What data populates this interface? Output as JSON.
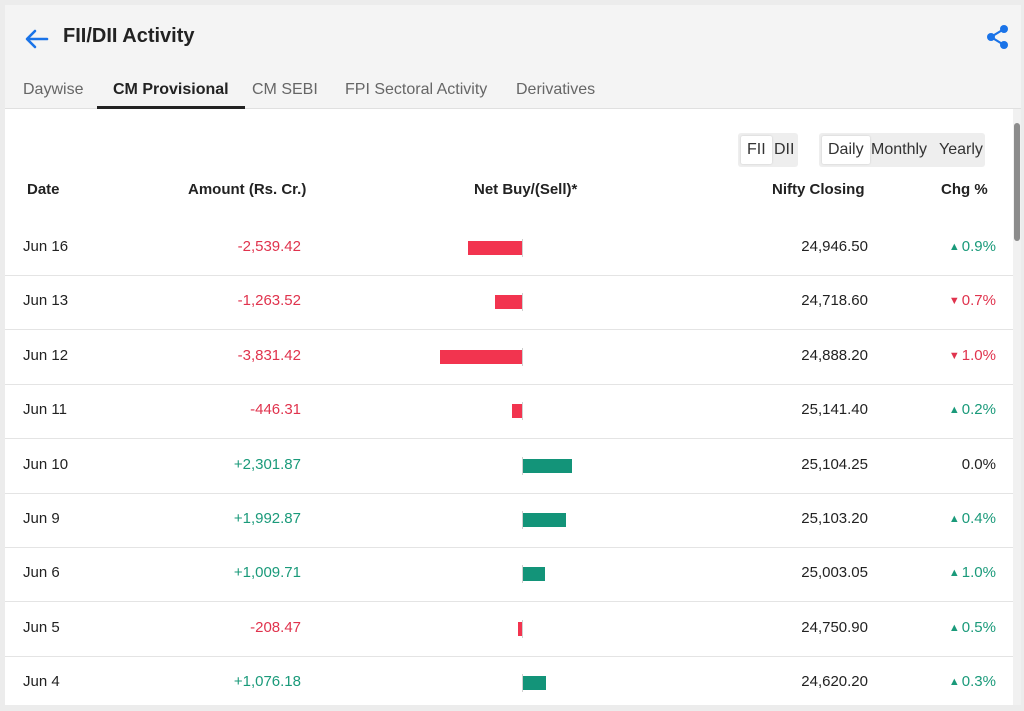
{
  "header": {
    "title": "FII/DII Activity",
    "back_icon": "arrow-left-icon",
    "share_icon": "share-icon",
    "accent_color": "#1a73e8"
  },
  "tabs": [
    {
      "label": "Daywise",
      "active": false
    },
    {
      "label": "CM Provisional",
      "active": true
    },
    {
      "label": "CM SEBI",
      "active": false
    },
    {
      "label": "FPI Sectoral Activity",
      "active": false
    },
    {
      "label": "Derivatives",
      "active": false
    }
  ],
  "investor_toggle": {
    "options": [
      "FII",
      "DII"
    ],
    "selected": "FII"
  },
  "period_toggle": {
    "options": [
      "Daily",
      "Monthly",
      "Yearly"
    ],
    "selected": "Daily"
  },
  "table": {
    "columns": [
      "Date",
      "Amount (Rs. Cr.)",
      "Net Buy/(Sell)*",
      "Nifty Closing",
      "Chg %"
    ],
    "rows": [
      {
        "date": "Jun 16",
        "amount": "-2,539.42",
        "net": -2539.42,
        "nifty": "24,946.50",
        "chg": "0.9%",
        "dir": "up"
      },
      {
        "date": "Jun 13",
        "amount": "-1,263.52",
        "net": -1263.52,
        "nifty": "24,718.60",
        "chg": "0.7%",
        "dir": "down"
      },
      {
        "date": "Jun 12",
        "amount": "-3,831.42",
        "net": -3831.42,
        "nifty": "24,888.20",
        "chg": "1.0%",
        "dir": "down"
      },
      {
        "date": "Jun 11",
        "amount": "-446.31",
        "net": -446.31,
        "nifty": "25,141.40",
        "chg": "0.2%",
        "dir": "up"
      },
      {
        "date": "Jun 10",
        "amount": "+2,301.87",
        "net": 2301.87,
        "nifty": "25,104.25",
        "chg": "0.0%",
        "dir": "flat"
      },
      {
        "date": "Jun 9",
        "amount": "+1,992.87",
        "net": 1992.87,
        "nifty": "25,103.20",
        "chg": "0.4%",
        "dir": "up"
      },
      {
        "date": "Jun 6",
        "amount": "+1,009.71",
        "net": 1009.71,
        "nifty": "25,003.05",
        "chg": "1.0%",
        "dir": "up"
      },
      {
        "date": "Jun 5",
        "amount": "-208.47",
        "net": -208.47,
        "nifty": "24,750.90",
        "chg": "0.5%",
        "dir": "up"
      },
      {
        "date": "Jun 4",
        "amount": "+1,076.18",
        "net": 1076.18,
        "nifty": "24,620.20",
        "chg": "0.3%",
        "dir": "up"
      }
    ]
  },
  "colors": {
    "negative": "#f2344f",
    "positive": "#139479"
  }
}
